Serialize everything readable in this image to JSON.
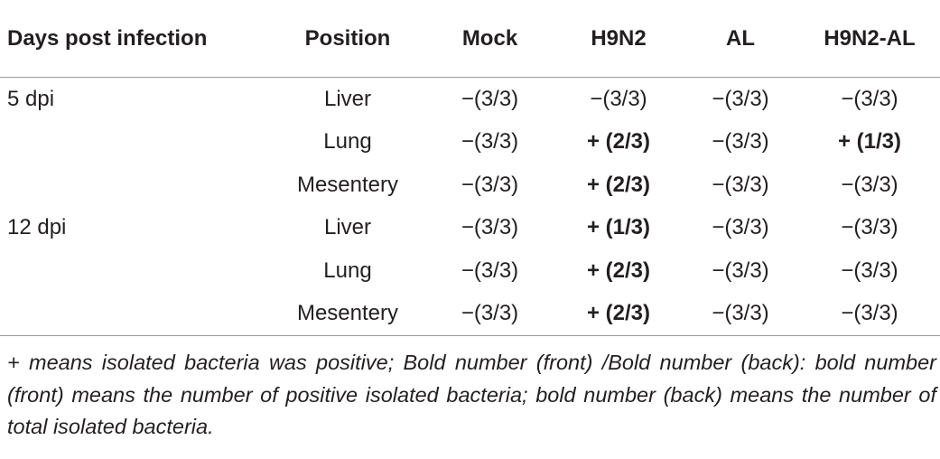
{
  "table": {
    "header": [
      "Days post infection",
      "Position",
      "Mock",
      "H9N2",
      "AL",
      "H9N2-AL"
    ],
    "rows": [
      [
        "5 dpi",
        "Liver",
        "−(3/3)",
        "−(3/3)",
        "−(3/3)",
        "−(3/3)"
      ],
      [
        null,
        "Lung",
        "−(3/3)",
        "+ (2/3)",
        "−(3/3)",
        "+ (1/3)"
      ],
      [
        null,
        "Mesentery",
        "−(3/3)",
        "+ (2/3)",
        "−(3/3)",
        "−(3/3)"
      ],
      [
        "12 dpi",
        "Liver",
        "−(3/3)",
        "+ (1/3)",
        "−(3/3)",
        "−(3/3)"
      ],
      [
        null,
        "Lung",
        "−(3/3)",
        "+ (2/3)",
        "−(3/3)",
        "−(3/3)"
      ],
      [
        null,
        "Mesentery",
        "−(3/3)",
        "+ (2/3)",
        "−(3/3)",
        "−(3/3)"
      ]
    ],
    "footnote": "+ means isolated bacteria was positive; Bold number (front) /Bold number (back): bold number (front) means the number of positive isolated bacteria; bold number (back) means the number of total isolated bacteria."
  }
}
